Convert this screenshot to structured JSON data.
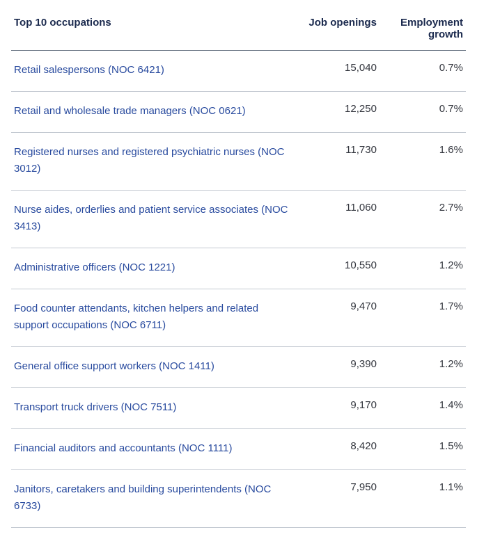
{
  "table": {
    "columns": {
      "occupation": "Top 10 occupations",
      "openings": "Job openings",
      "growth": "Employment growth"
    },
    "rows": [
      {
        "occupation": "Retail salespersons (NOC 6421)",
        "openings": "15,040",
        "growth": "0.7%"
      },
      {
        "occupation": "Retail and wholesale trade managers (NOC 0621)",
        "openings": "12,250",
        "growth": "0.7%"
      },
      {
        "occupation": "Registered nurses and registered psychiatric nurses (NOC 3012)",
        "openings": "11,730",
        "growth": "1.6%"
      },
      {
        "occupation": "Nurse aides, orderlies and patient service associates (NOC 3413)",
        "openings": "11,060",
        "growth": "2.7%"
      },
      {
        "occupation": "Administrative officers (NOC 1221)",
        "openings": "10,550",
        "growth": "1.2%"
      },
      {
        "occupation": "Food counter attendants, kitchen helpers and related support occupations (NOC 6711)",
        "openings": "9,470",
        "growth": "1.7%"
      },
      {
        "occupation": "General office support workers (NOC 1411)",
        "openings": "9,390",
        "growth": "1.2%"
      },
      {
        "occupation": "Transport truck drivers (NOC 7511)",
        "openings": "9,170",
        "growth": "1.4%"
      },
      {
        "occupation": "Financial auditors and accountants (NOC 1111)",
        "openings": "8,420",
        "growth": "1.5%"
      },
      {
        "occupation": "Janitors, caretakers and building superintendents (NOC 6733)",
        "openings": "7,950",
        "growth": "1.1%"
      }
    ],
    "style": {
      "type": "table",
      "link_color": "#284a9e",
      "header_color": "#1b2a4e",
      "value_color": "#33363e",
      "header_border_color": "#6b7684",
      "row_border_color": "#c3c9d1",
      "background_color": "#ffffff",
      "font_size_header": 15,
      "font_size_body": 15,
      "columns_align": [
        "left",
        "right",
        "right"
      ]
    }
  }
}
